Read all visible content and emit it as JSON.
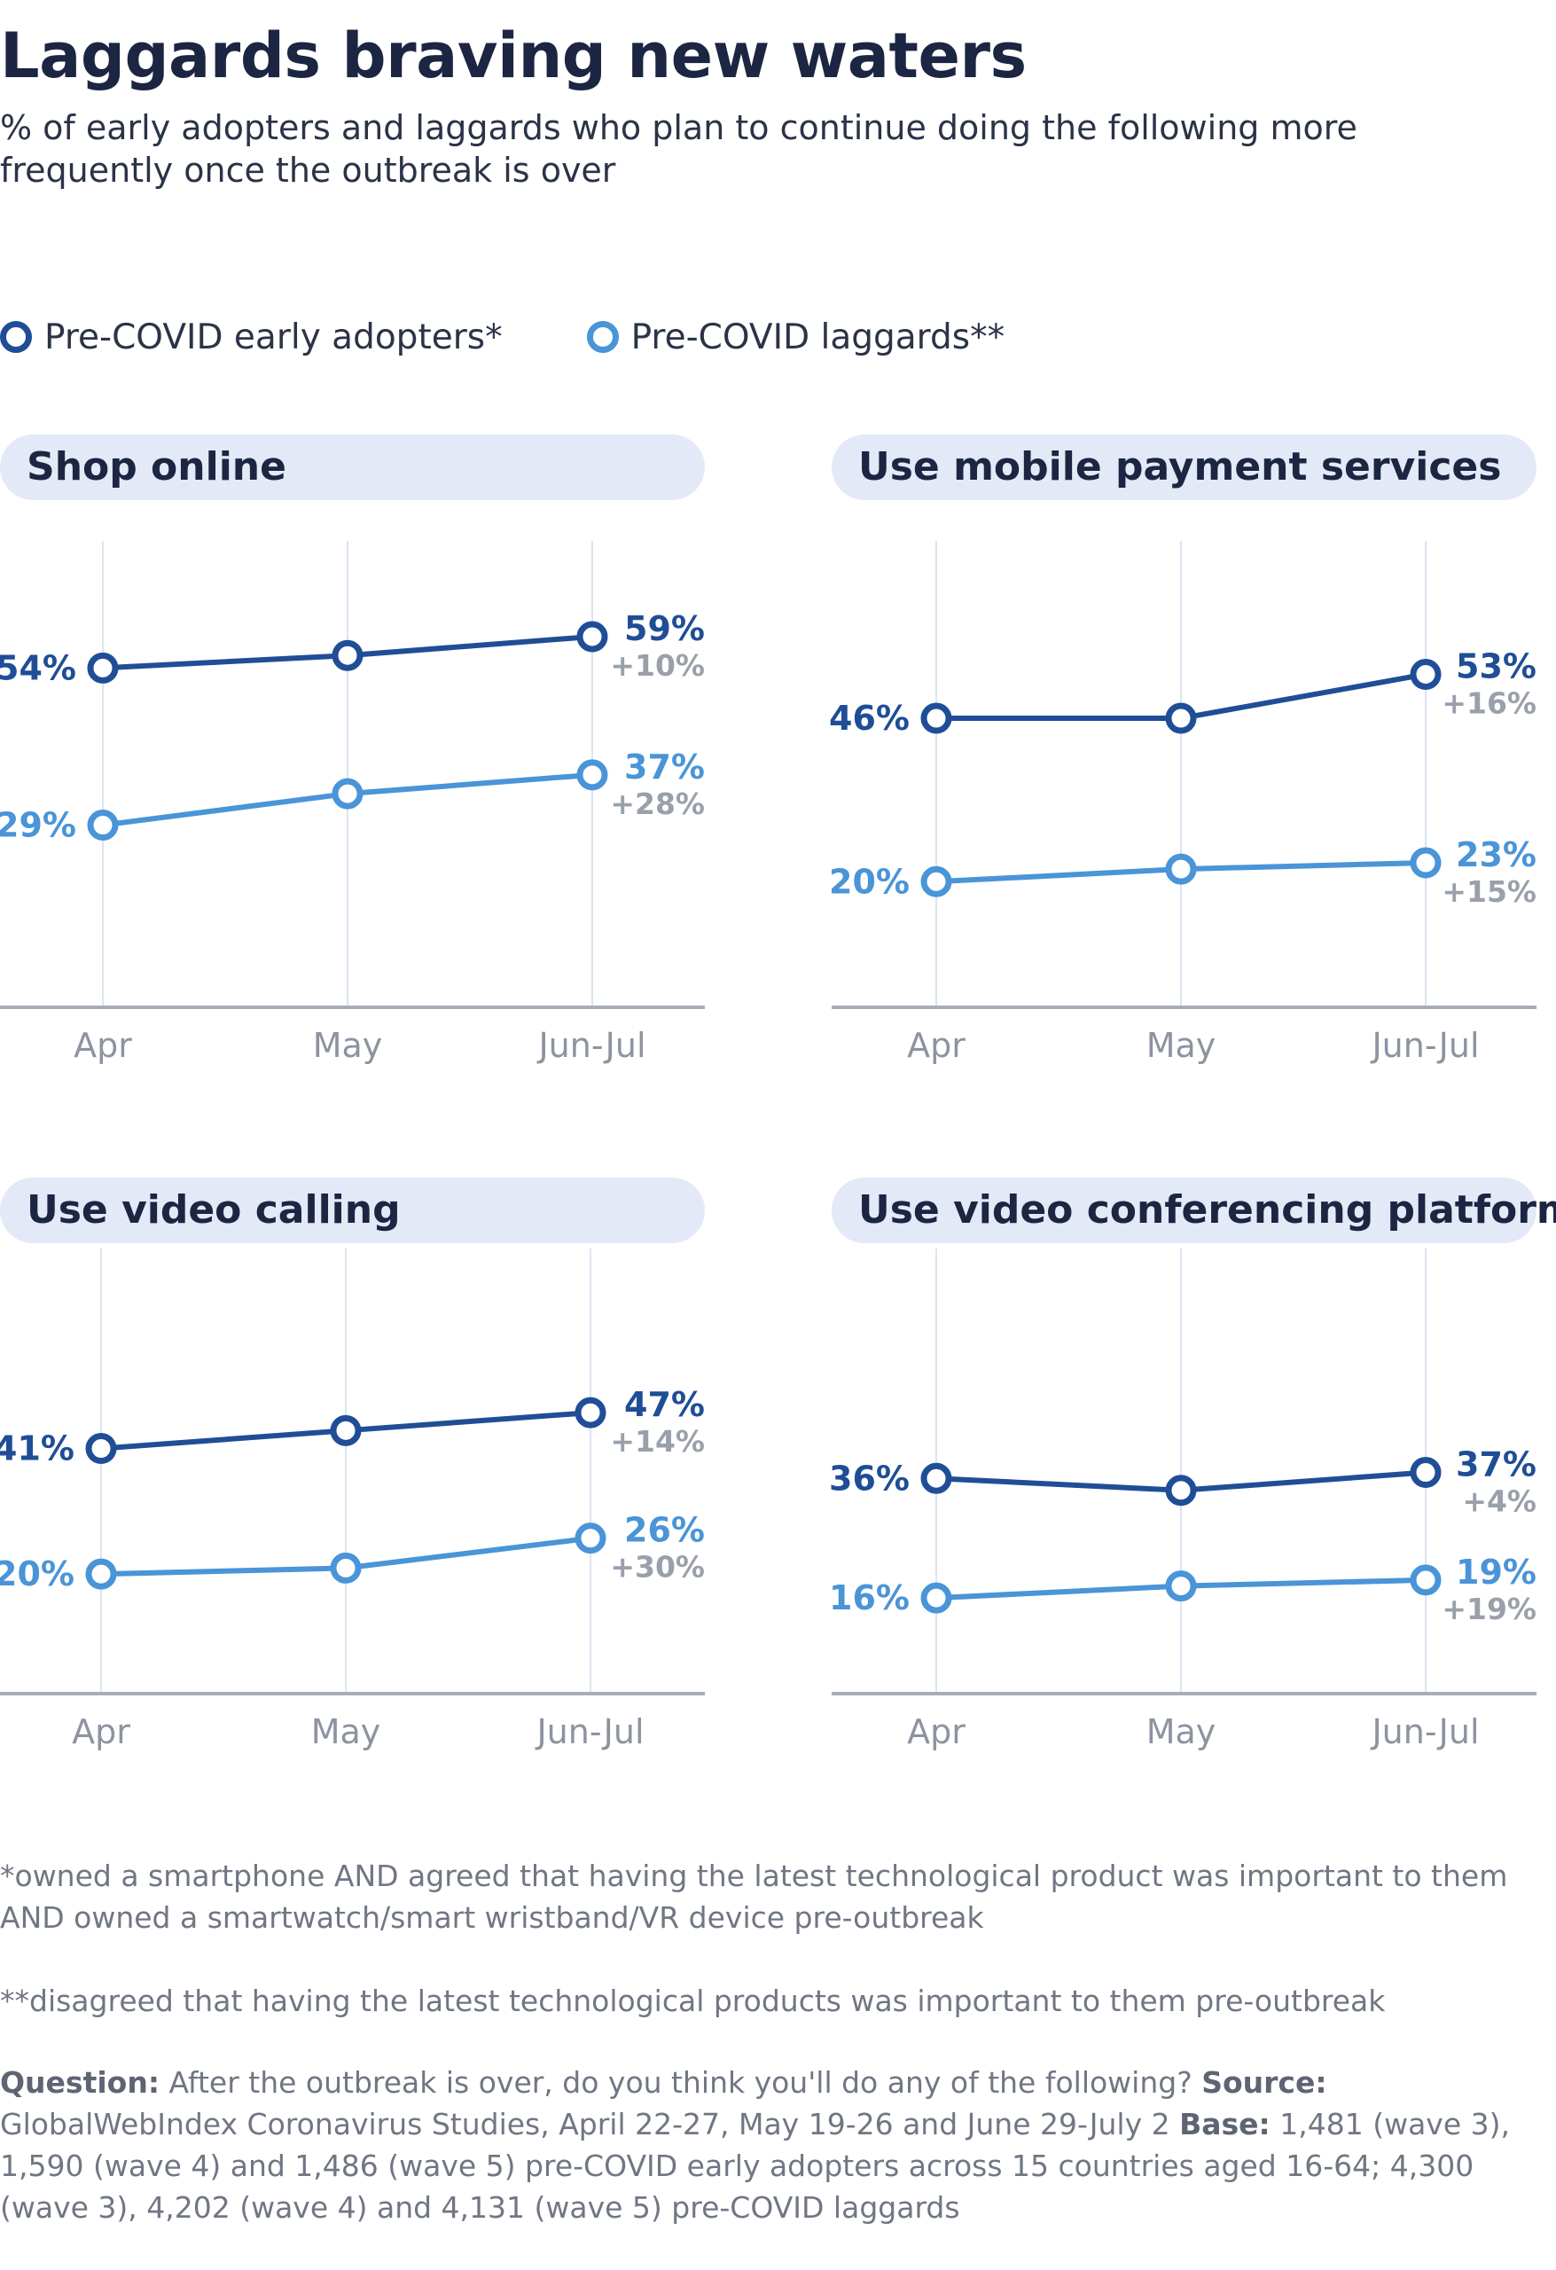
{
  "title": "Laggards braving new waters",
  "subtitle": "% of early adopters and laggards who plan to continue doing the following more frequently once the outbreak is over",
  "legend": {
    "early": "Pre-COVID early adopters*",
    "laggards": "Pre-COVID laggards**"
  },
  "colors": {
    "early": "#1f4e96",
    "laggards": "#4a94d8",
    "change": "#9aa0ab",
    "axis": "#8d93a0",
    "grid": "#dde4f1"
  },
  "chart_data": [
    {
      "type": "line",
      "title": "Shop online",
      "categories": [
        "Apr",
        "May",
        "Jun-Jul"
      ],
      "ylim": [
        0,
        70
      ],
      "series": [
        {
          "name": "Pre-COVID early adopters*",
          "values": [
            54,
            56,
            59
          ],
          "start_label": "54%",
          "end_label": "59%",
          "change": "+10%"
        },
        {
          "name": "Pre-COVID laggards**",
          "values": [
            29,
            34,
            37
          ],
          "start_label": "29%",
          "end_label": "37%",
          "change": "+28%"
        }
      ]
    },
    {
      "type": "line",
      "title": "Use mobile payment services",
      "categories": [
        "Apr",
        "May",
        "Jun-Jul"
      ],
      "ylim": [
        0,
        70
      ],
      "series": [
        {
          "name": "Pre-COVID early adopters*",
          "values": [
            46,
            46,
            53
          ],
          "start_label": "46%",
          "end_label": "53%",
          "change": "+16%"
        },
        {
          "name": "Pre-COVID laggards**",
          "values": [
            20,
            22,
            23
          ],
          "start_label": "20%",
          "end_label": "23%",
          "change": "+15%"
        }
      ]
    },
    {
      "type": "line",
      "title": "Use video calling",
      "categories": [
        "Apr",
        "May",
        "Jun-Jul"
      ],
      "ylim": [
        0,
        70
      ],
      "series": [
        {
          "name": "Pre-COVID early adopters*",
          "values": [
            41,
            44,
            47
          ],
          "start_label": "41%",
          "end_label": "47%",
          "change": "+14%"
        },
        {
          "name": "Pre-COVID laggards**",
          "values": [
            20,
            21,
            26
          ],
          "start_label": "20%",
          "end_label": "26%",
          "change": "+30%"
        }
      ]
    },
    {
      "type": "line",
      "title": "Use video conferencing platforms",
      "categories": [
        "Apr",
        "May",
        "Jun-Jul"
      ],
      "ylim": [
        0,
        70
      ],
      "series": [
        {
          "name": "Pre-COVID early adopters*",
          "values": [
            36,
            34,
            37
          ],
          "start_label": "36%",
          "end_label": "37%",
          "change": "+4%"
        },
        {
          "name": "Pre-COVID laggards**",
          "values": [
            16,
            18,
            19
          ],
          "start_label": "16%",
          "end_label": "19%",
          "change": "+19%"
        }
      ]
    }
  ],
  "footnotes": {
    "note1": "*owned a smartphone AND agreed that having the latest technological product was important to them AND owned a smartwatch/smart wristband/VR device pre-outbreak",
    "note2": "**disagreed that having the latest technological products was important to them pre-outbreak",
    "question_label": "Question:",
    "question": "After the outbreak is over, do you think you'll do any of the following?",
    "source_label": "Source:",
    "source": "GlobalWebIndex Coronavirus Studies, April 22-27, May 19-26 and June 29-July 2",
    "base_label": "Base:",
    "base": "1,481 (wave 3), 1,590 (wave 4) and 1,486 (wave 5) pre-COVID early adopters across 15 countries aged 16-64; 4,300 (wave 3), 4,202 (wave 4) and 4,131 (wave 5) pre-COVID laggards"
  }
}
